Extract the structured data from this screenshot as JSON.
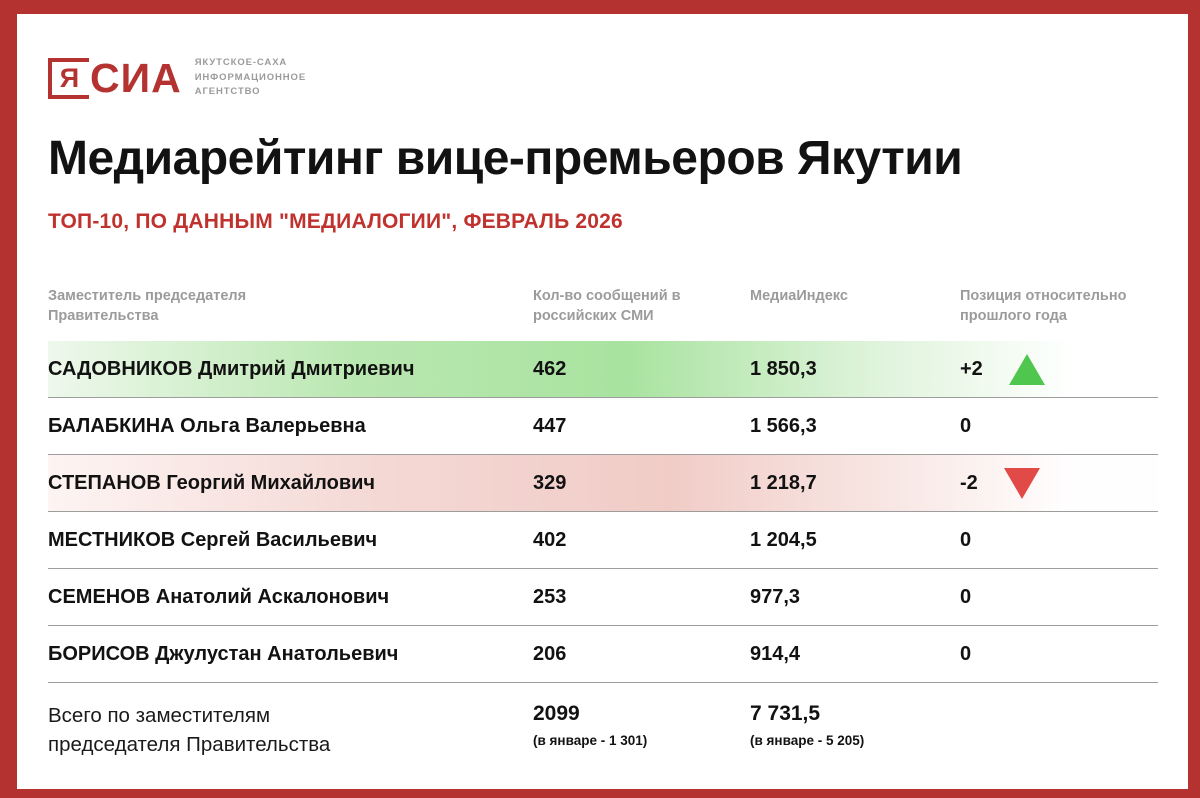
{
  "logo": {
    "bracket_letter": "Я",
    "brand_rest": "СИА",
    "tagline_lines": [
      "ЯКУТСКОЕ-САХА",
      "ИНФОРМАЦИОННОЕ",
      "АГЕНТСТВО"
    ]
  },
  "chart_data": {
    "type": "table",
    "title": "Медиарейтинг вице-премьеров Якутии",
    "subtitle": "ТОП-10, ПО ДАННЫМ \"МЕДИАЛОГИИ\", ФЕВРАЛЬ 2026",
    "columns": [
      "Заместитель председателя Правительства",
      "Кол-во сообщений в российских СМИ",
      "МедиаИндекс",
      "Позиция относительно прошлого года"
    ],
    "rows": [
      {
        "name": "САДОВНИКОВ Дмитрий Дмитриевич",
        "messages": "462",
        "media_index": "1 850,3",
        "position": "+2",
        "trend": "up",
        "highlight": "green"
      },
      {
        "name": "БАЛАБКИНА Ольга Валерьевна",
        "messages": "447",
        "media_index": "1 566,3",
        "position": "0",
        "trend": "none",
        "highlight": "none"
      },
      {
        "name": "СТЕПАНОВ Георгий Михайлович",
        "messages": "329",
        "media_index": "1 218,7",
        "position": "-2",
        "trend": "down",
        "highlight": "red"
      },
      {
        "name": "МЕСТНИКОВ Сергей Васильевич",
        "messages": "402",
        "media_index": "1 204,5",
        "position": "0",
        "trend": "none",
        "highlight": "none"
      },
      {
        "name": "СЕМЕНОВ Анатолий Аскалонович",
        "messages": "253",
        "media_index": "977,3",
        "position": "0",
        "trend": "none",
        "highlight": "none"
      },
      {
        "name": "БОРИСОВ Джулустан Анатольевич",
        "messages": "206",
        "media_index": "914,4",
        "position": "0",
        "trend": "none",
        "highlight": "none"
      }
    ],
    "total": {
      "label": "Всего по заместителям председателя Правительства",
      "messages": "2099",
      "messages_note": "(в январе - 1 301)",
      "media_index": "7 731,5",
      "media_index_note": "(в январе - 5 205)"
    }
  },
  "colors": {
    "frame_red": "#b43331",
    "accent_red": "#c0322e",
    "up_green": "#4fc74f",
    "down_red": "#e14a46",
    "header_gray": "#9b9b9b"
  }
}
